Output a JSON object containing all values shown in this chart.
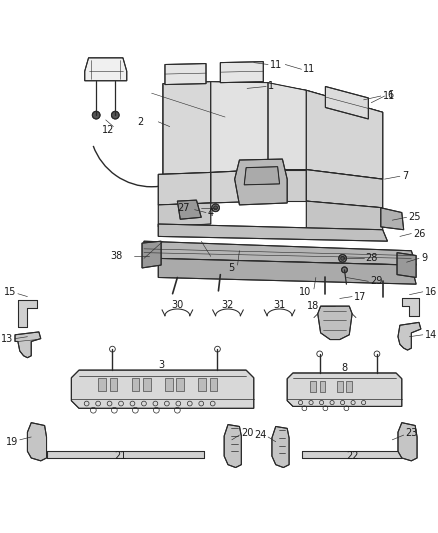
{
  "bg_color": "#ffffff",
  "line_color": "#2a2a2a",
  "figsize": [
    4.38,
    5.33
  ],
  "dpi": 100,
  "label_fontsize": 7.0,
  "label_color": "#1a1a1a",
  "leader_lw": 0.45,
  "part_lw": 0.75
}
